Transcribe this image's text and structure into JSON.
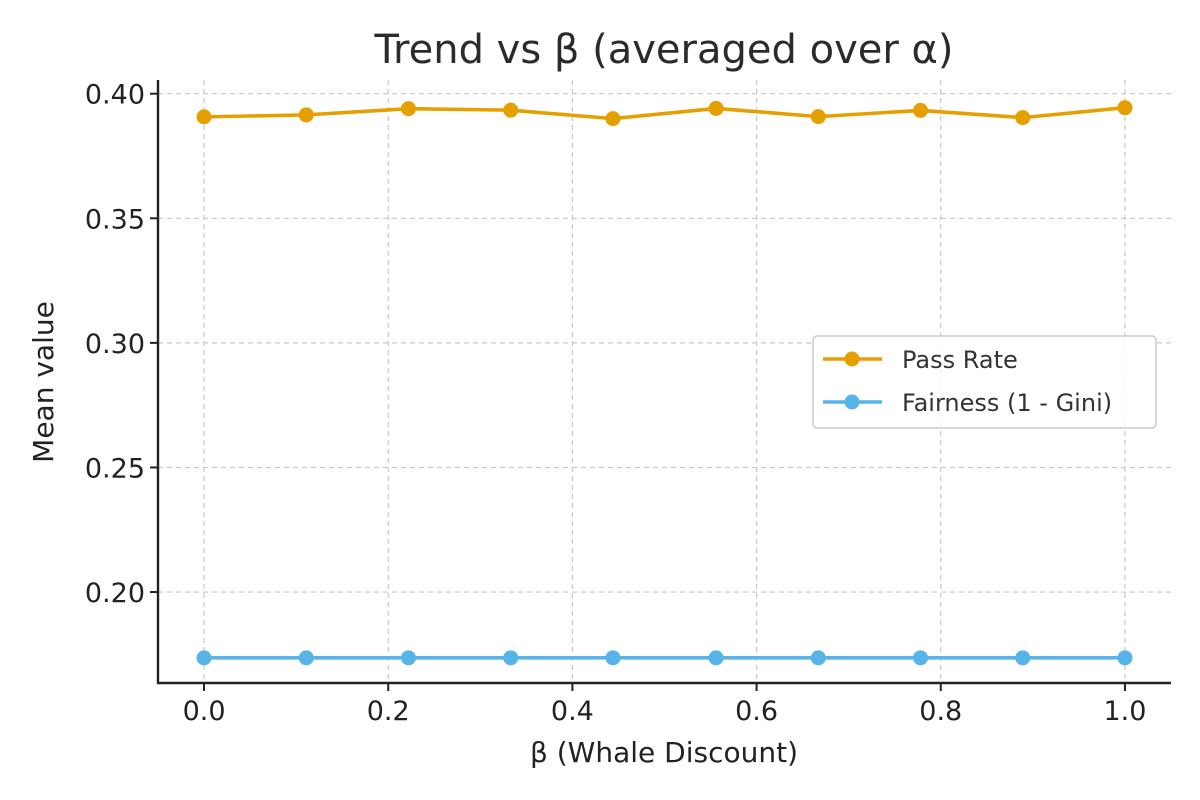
{
  "chart_data": {
    "type": "line",
    "title": "Trend vs β (averaged over α)",
    "xlabel": "β (Whale Discount)",
    "ylabel": "Mean value",
    "xlim": [
      -0.05,
      1.05
    ],
    "ylim": [
      0.1635,
      0.4055
    ],
    "xticks": [
      0.0,
      0.2,
      0.4,
      0.6,
      0.8,
      1.0
    ],
    "xtick_labels": [
      "0.0",
      "0.2",
      "0.4",
      "0.6",
      "0.8",
      "1.0"
    ],
    "yticks": [
      0.2,
      0.25,
      0.3,
      0.35,
      0.4
    ],
    "ytick_labels": [
      "0.20",
      "0.25",
      "0.30",
      "0.35",
      "0.40"
    ],
    "grid": true,
    "legend_position": "center-right",
    "x": [
      0.0,
      0.111,
      0.222,
      0.333,
      0.444,
      0.556,
      0.667,
      0.778,
      0.889,
      1.0
    ],
    "series": [
      {
        "name": "Pass Rate",
        "color": "#E69F00",
        "marker": "circle",
        "values": [
          0.3907,
          0.3915,
          0.394,
          0.3934,
          0.39,
          0.3941,
          0.3908,
          0.3933,
          0.3904,
          0.3944
        ]
      },
      {
        "name": "Fairness (1 - Gini)",
        "color": "#56B4E9",
        "marker": "circle",
        "values": [
          0.1736,
          0.1736,
          0.1736,
          0.1736,
          0.1736,
          0.1736,
          0.1736,
          0.1736,
          0.1736,
          0.1736
        ]
      }
    ]
  }
}
